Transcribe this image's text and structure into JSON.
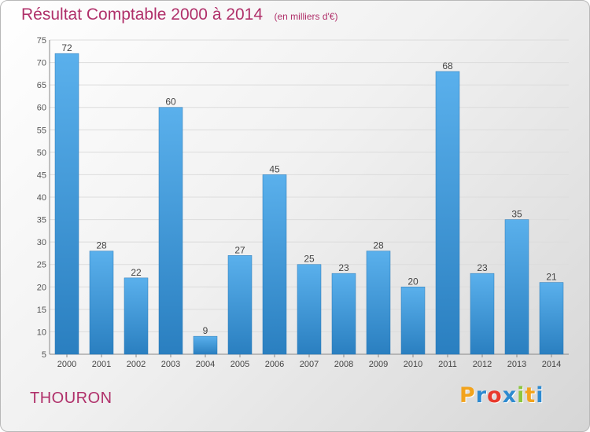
{
  "chart_data": {
    "type": "bar",
    "title": "Résultat Comptable 2000 à 2014",
    "subtitle": "(en milliers d'€)",
    "categories": [
      "2000",
      "2001",
      "2002",
      "2003",
      "2004",
      "2005",
      "2006",
      "2007",
      "2008",
      "2009",
      "2010",
      "2011",
      "2012",
      "2013",
      "2014"
    ],
    "values": [
      72,
      28,
      22,
      60,
      9,
      27,
      45,
      25,
      23,
      28,
      20,
      68,
      23,
      35,
      21
    ],
    "ylim": [
      5,
      75
    ],
    "yticks": [
      5,
      10,
      15,
      20,
      25,
      30,
      35,
      40,
      45,
      50,
      55,
      60,
      65,
      70,
      75
    ],
    "xlabel": "",
    "ylabel": "",
    "grid": true,
    "bar_color": "#3f95d8"
  },
  "place_name": "THOURON",
  "logo": {
    "text": "Proxiti",
    "letters": [
      {
        "ch": "P",
        "color": "#f2a31c"
      },
      {
        "ch": "r",
        "color": "#2d8ad0"
      },
      {
        "ch": "o",
        "color": "#e8392c"
      },
      {
        "ch": "x",
        "color": "#2d8ad0"
      },
      {
        "ch": "i",
        "color": "#8cc63e"
      },
      {
        "ch": "t",
        "color": "#f2a31c"
      },
      {
        "ch": "i",
        "color": "#2d8ad0"
      }
    ]
  },
  "accent_color": "#b0306a"
}
